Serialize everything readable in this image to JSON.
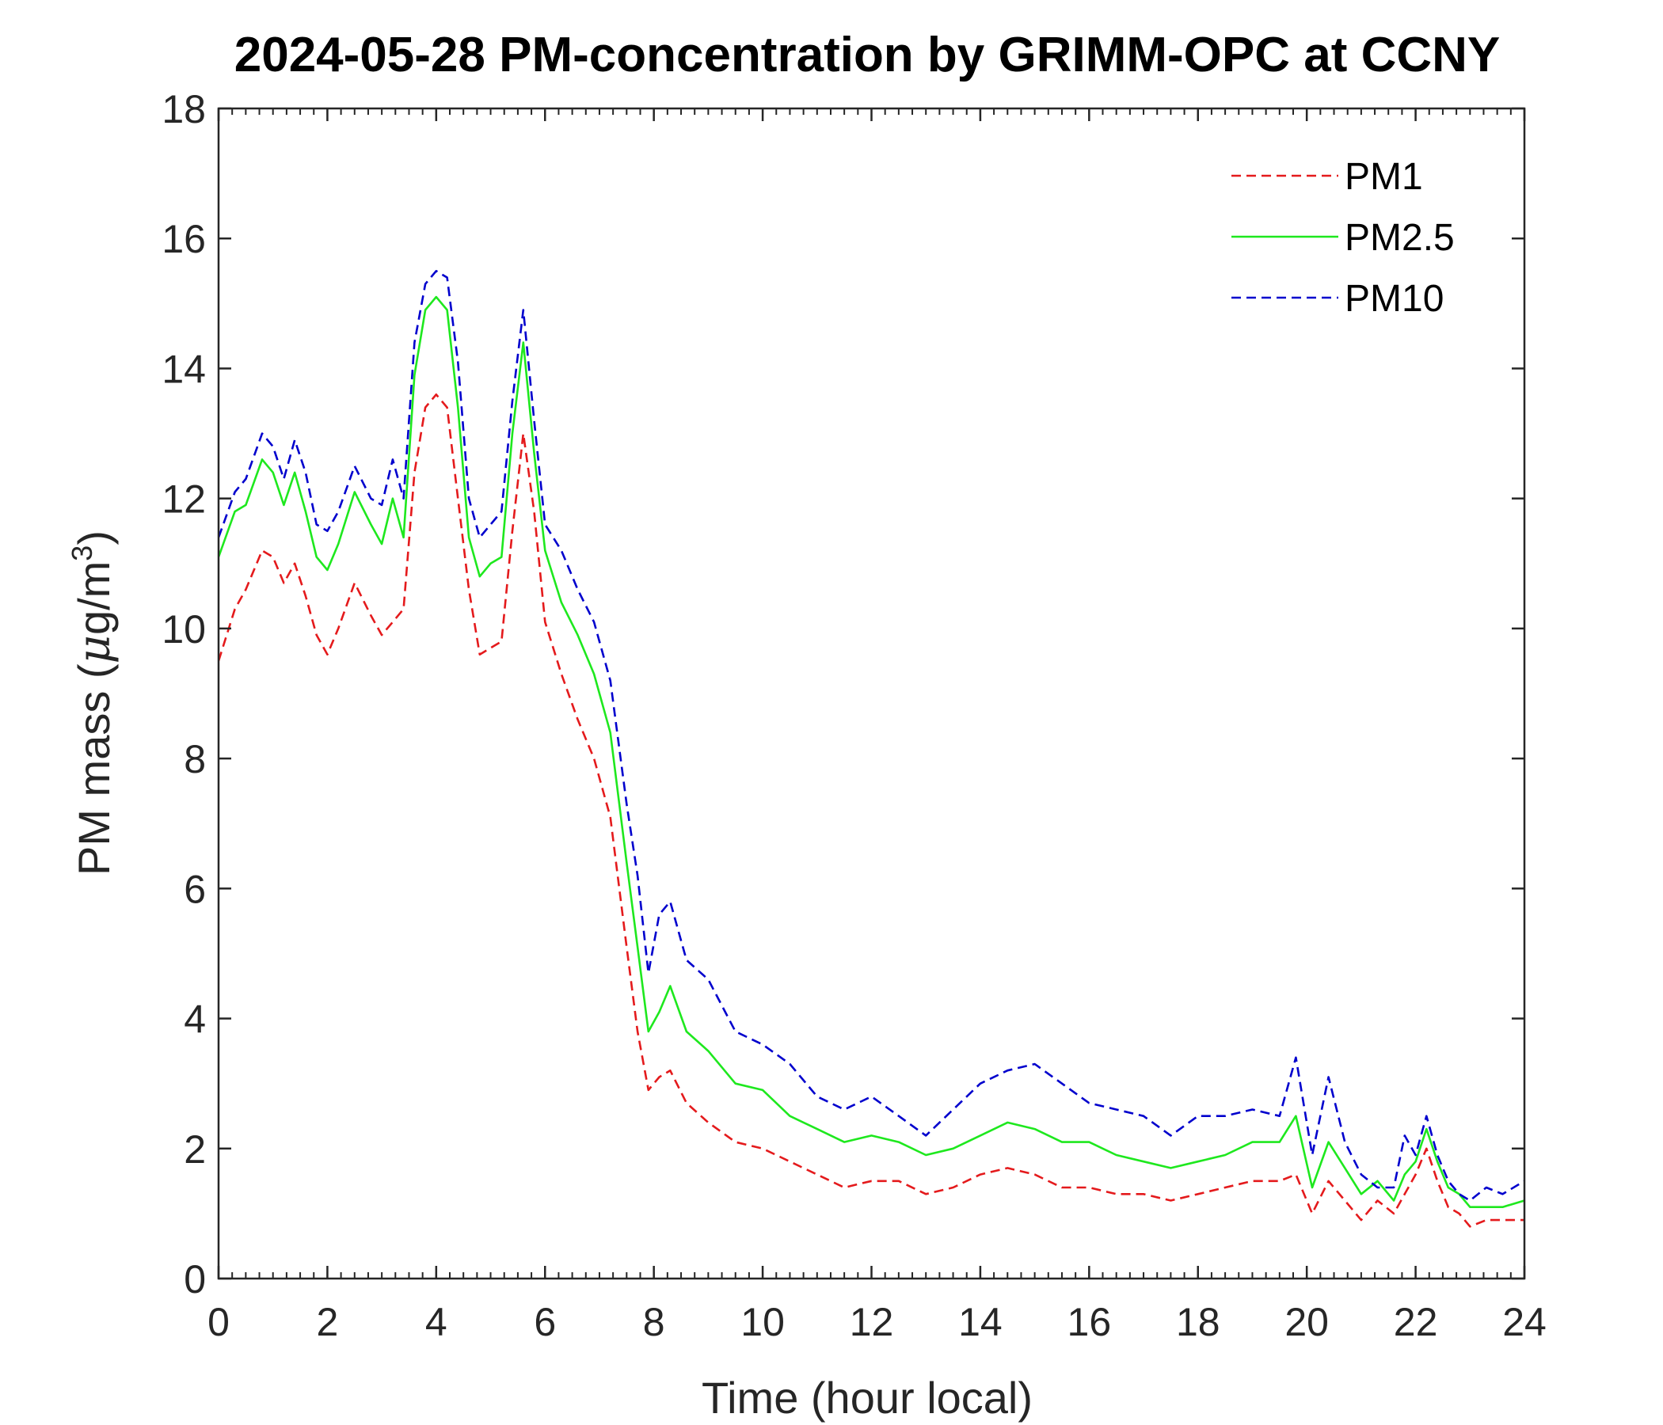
{
  "chart_data": {
    "type": "line",
    "title": "2024-05-28 PM-concentration by GRIMM-OPC at CCNY",
    "xlabel": "Time (hour local)",
    "ylabel": "PM mass (μg/m³)",
    "ylabel_parts": {
      "main": "PM mass (",
      "mu": "μ",
      "unit": "g/m",
      "sup": "3",
      "close": ")"
    },
    "xlim": [
      0,
      24
    ],
    "ylim": [
      0,
      18
    ],
    "xticks": [
      0,
      2,
      4,
      6,
      8,
      10,
      12,
      14,
      16,
      18,
      20,
      22,
      24
    ],
    "yticks": [
      0,
      2,
      4,
      6,
      8,
      10,
      12,
      14,
      16,
      18
    ],
    "legend_position": "top-right",
    "series": [
      {
        "name": "PM1",
        "color": "#e41a1c",
        "dash": "dashed",
        "x": [
          0,
          0.3,
          0.5,
          0.8,
          1.0,
          1.2,
          1.4,
          1.6,
          1.8,
          2.0,
          2.2,
          2.5,
          2.8,
          3.0,
          3.2,
          3.4,
          3.6,
          3.8,
          4.0,
          4.2,
          4.4,
          4.6,
          4.8,
          5.0,
          5.2,
          5.4,
          5.6,
          5.8,
          6.0,
          6.3,
          6.6,
          6.9,
          7.2,
          7.5,
          7.7,
          7.9,
          8.1,
          8.3,
          8.6,
          9.0,
          9.5,
          10.0,
          10.5,
          11.0,
          11.5,
          12.0,
          12.5,
          13.0,
          13.5,
          14.0,
          14.5,
          15.0,
          15.5,
          16.0,
          16.5,
          17.0,
          17.5,
          18.0,
          18.5,
          19.0,
          19.5,
          19.8,
          20.1,
          20.4,
          20.7,
          21.0,
          21.3,
          21.6,
          21.8,
          22.0,
          22.2,
          22.4,
          22.6,
          22.8,
          23.0,
          23.3,
          23.6,
          24.0
        ],
        "y": [
          9.5,
          10.3,
          10.6,
          11.2,
          11.1,
          10.7,
          11.0,
          10.5,
          9.9,
          9.6,
          10.0,
          10.7,
          10.2,
          9.9,
          10.1,
          10.3,
          12.4,
          13.4,
          13.6,
          13.4,
          12.0,
          10.6,
          9.6,
          9.7,
          9.8,
          11.5,
          13.0,
          11.8,
          10.1,
          9.3,
          8.6,
          8.0,
          7.1,
          5.1,
          3.8,
          2.9,
          3.1,
          3.2,
          2.7,
          2.4,
          2.1,
          2.0,
          1.8,
          1.6,
          1.4,
          1.5,
          1.5,
          1.3,
          1.4,
          1.6,
          1.7,
          1.6,
          1.4,
          1.4,
          1.3,
          1.3,
          1.2,
          1.3,
          1.4,
          1.5,
          1.5,
          1.6,
          1.0,
          1.5,
          1.2,
          0.9,
          1.2,
          1.0,
          1.3,
          1.6,
          2.0,
          1.5,
          1.1,
          1.0,
          0.8,
          0.9,
          0.9,
          0.9
        ]
      },
      {
        "name": "PM2.5",
        "color": "#1ee81e",
        "dash": "solid",
        "x": [
          0,
          0.3,
          0.5,
          0.8,
          1.0,
          1.2,
          1.4,
          1.6,
          1.8,
          2.0,
          2.2,
          2.5,
          2.8,
          3.0,
          3.2,
          3.4,
          3.6,
          3.8,
          4.0,
          4.2,
          4.4,
          4.6,
          4.8,
          5.0,
          5.2,
          5.4,
          5.6,
          5.8,
          6.0,
          6.3,
          6.6,
          6.9,
          7.2,
          7.5,
          7.7,
          7.9,
          8.1,
          8.3,
          8.6,
          9.0,
          9.5,
          10.0,
          10.5,
          11.0,
          11.5,
          12.0,
          12.5,
          13.0,
          13.5,
          14.0,
          14.5,
          15.0,
          15.5,
          16.0,
          16.5,
          17.0,
          17.5,
          18.0,
          18.5,
          19.0,
          19.5,
          19.8,
          20.1,
          20.4,
          20.7,
          21.0,
          21.3,
          21.6,
          21.8,
          22.0,
          22.2,
          22.4,
          22.6,
          22.8,
          23.0,
          23.3,
          23.6,
          24.0
        ],
        "y": [
          11.1,
          11.8,
          11.9,
          12.6,
          12.4,
          11.9,
          12.4,
          11.8,
          11.1,
          10.9,
          11.3,
          12.1,
          11.6,
          11.3,
          12.0,
          11.4,
          13.9,
          14.9,
          15.1,
          14.9,
          13.4,
          11.4,
          10.8,
          11.0,
          11.1,
          13.0,
          14.4,
          12.7,
          11.2,
          10.4,
          9.9,
          9.3,
          8.4,
          6.4,
          5.1,
          3.8,
          4.1,
          4.5,
          3.8,
          3.5,
          3.0,
          2.9,
          2.5,
          2.3,
          2.1,
          2.2,
          2.1,
          1.9,
          2.0,
          2.2,
          2.4,
          2.3,
          2.1,
          2.1,
          1.9,
          1.8,
          1.7,
          1.8,
          1.9,
          2.1,
          2.1,
          2.5,
          1.4,
          2.1,
          1.7,
          1.3,
          1.5,
          1.2,
          1.6,
          1.8,
          2.3,
          1.8,
          1.4,
          1.3,
          1.1,
          1.1,
          1.1,
          1.2
        ]
      },
      {
        "name": "PM10",
        "color": "#0000cd",
        "dash": "dashed",
        "x": [
          0,
          0.3,
          0.5,
          0.8,
          1.0,
          1.2,
          1.4,
          1.6,
          1.8,
          2.0,
          2.2,
          2.5,
          2.8,
          3.0,
          3.2,
          3.4,
          3.6,
          3.8,
          4.0,
          4.2,
          4.4,
          4.6,
          4.8,
          5.0,
          5.2,
          5.4,
          5.6,
          5.8,
          6.0,
          6.3,
          6.6,
          6.9,
          7.2,
          7.5,
          7.7,
          7.9,
          8.1,
          8.3,
          8.6,
          9.0,
          9.5,
          10.0,
          10.5,
          11.0,
          11.5,
          12.0,
          12.5,
          13.0,
          13.5,
          14.0,
          14.5,
          15.0,
          15.5,
          16.0,
          16.5,
          17.0,
          17.5,
          18.0,
          18.5,
          19.0,
          19.5,
          19.8,
          20.1,
          20.4,
          20.7,
          21.0,
          21.3,
          21.6,
          21.8,
          22.0,
          22.2,
          22.4,
          22.6,
          22.8,
          23.0,
          23.3,
          23.6,
          24.0
        ],
        "y": [
          11.4,
          12.1,
          12.3,
          13.0,
          12.8,
          12.3,
          12.9,
          12.4,
          11.6,
          11.5,
          11.8,
          12.5,
          12.0,
          11.9,
          12.6,
          12.0,
          14.4,
          15.3,
          15.5,
          15.4,
          14.1,
          12.0,
          11.4,
          11.6,
          11.8,
          13.5,
          14.9,
          13.2,
          11.6,
          11.2,
          10.6,
          10.1,
          9.2,
          7.3,
          6.2,
          4.7,
          5.6,
          5.8,
          4.9,
          4.6,
          3.8,
          3.6,
          3.3,
          2.8,
          2.6,
          2.8,
          2.5,
          2.2,
          2.6,
          3.0,
          3.2,
          3.3,
          3.0,
          2.7,
          2.6,
          2.5,
          2.2,
          2.5,
          2.5,
          2.6,
          2.5,
          3.4,
          1.9,
          3.1,
          2.1,
          1.6,
          1.4,
          1.4,
          2.2,
          1.9,
          2.5,
          1.9,
          1.5,
          1.3,
          1.2,
          1.4,
          1.3,
          1.5
        ]
      }
    ]
  }
}
